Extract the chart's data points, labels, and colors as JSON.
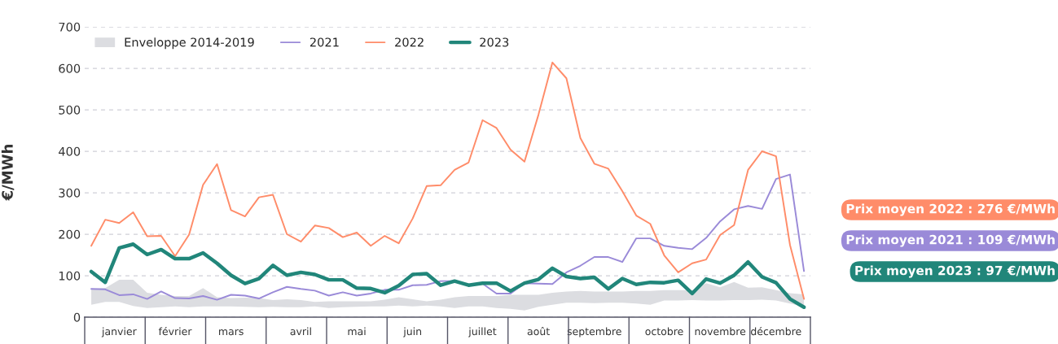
{
  "chart_data": {
    "type": "line",
    "ylabel": "€/MWh",
    "categories": [
      null,
      null,
      "janvier",
      null,
      null,
      null,
      "février",
      null,
      null,
      null,
      "mars",
      null,
      null,
      null,
      null,
      "avril",
      null,
      null,
      null,
      "mai",
      null,
      null,
      null,
      "juin",
      null,
      null,
      null,
      null,
      "juillet",
      null,
      null,
      null,
      "août",
      null,
      null,
      null,
      "septembre",
      null,
      null,
      null,
      null,
      "octobre",
      null,
      null,
      null,
      "novembre",
      null,
      null,
      null,
      "décembre",
      null,
      null
    ],
    "ylim": [
      0,
      700
    ],
    "yticks": [
      0,
      100,
      200,
      300,
      400,
      500,
      600,
      700
    ],
    "grid": "y",
    "legend": "top left",
    "series": [
      {
        "name": "Enveloppe 2014-2019",
        "color": "#dcdde1",
        "values": [
          null,
          null,
          null,
          null,
          null,
          null,
          null,
          null,
          null,
          null,
          null,
          null,
          null,
          null,
          null,
          null,
          null,
          null,
          null,
          null,
          null,
          null,
          null,
          null,
          null,
          null,
          null,
          null,
          null,
          null,
          null,
          null,
          null,
          null,
          null,
          null,
          null,
          null,
          null,
          null,
          null,
          null,
          null,
          null,
          null,
          null,
          null,
          null,
          null,
          null,
          null,
          null
        ],
        "upper": [
          68,
          70,
          90,
          90,
          59,
          54,
          51,
          51,
          70,
          48,
          46,
          47,
          46,
          41,
          43,
          41,
          37,
          38,
          38,
          38,
          38,
          42,
          48,
          43,
          38,
          42,
          48,
          51,
          51,
          51,
          54,
          54,
          54,
          59,
          62,
          63,
          62,
          62,
          62,
          63,
          63,
          65,
          65,
          65,
          82,
          72,
          85,
          71,
          72,
          65,
          58,
          55
        ],
        "lower": [
          30,
          37,
          37,
          27,
          22,
          24,
          26,
          24,
          26,
          26,
          26,
          25,
          24,
          25,
          24,
          24,
          26,
          22,
          24,
          25,
          26,
          26,
          28,
          26,
          28,
          26,
          22,
          26,
          26,
          22,
          20,
          16,
          25,
          30,
          35,
          35,
          34,
          35,
          35,
          33,
          30,
          40,
          40,
          41,
          40,
          40,
          41,
          41,
          42,
          40,
          33,
          25
        ]
      },
      {
        "name": "2021",
        "color": "#9a8ad8",
        "values": [
          68,
          67,
          53,
          55,
          44,
          62,
          46,
          45,
          51,
          42,
          54,
          52,
          45,
          60,
          73,
          68,
          64,
          52,
          60,
          52,
          57,
          66,
          66,
          77,
          78,
          87,
          87,
          78,
          81,
          57,
          57,
          82,
          81,
          80,
          108,
          124,
          145,
          145,
          133,
          190,
          190,
          172,
          167,
          164,
          191,
          231,
          260,
          268,
          261,
          333,
          344,
          111
        ]
      },
      {
        "name": "2022",
        "color": "#ff8c69",
        "values": [
          172,
          235,
          227,
          253,
          195,
          196,
          147,
          199,
          319,
          369,
          258,
          243,
          289,
          295,
          200,
          182,
          221,
          215,
          193,
          204,
          172,
          196,
          178,
          238,
          316,
          318,
          355,
          373,
          475,
          456,
          404,
          375,
          488,
          614,
          576,
          432,
          370,
          358,
          304,
          245,
          225,
          149,
          108,
          130,
          139,
          198,
          222,
          355,
          400,
          388,
          174,
          44
        ]
      },
      {
        "name": "2023",
        "color": "#21867a",
        "values": [
          110,
          84,
          167,
          176,
          151,
          163,
          141,
          141,
          155,
          130,
          101,
          81,
          93,
          125,
          101,
          108,
          103,
          90,
          90,
          70,
          69,
          59,
          76,
          103,
          105,
          77,
          87,
          77,
          82,
          82,
          63,
          82,
          91,
          118,
          98,
          93,
          96,
          68,
          93,
          79,
          84,
          83,
          89,
          57,
          92,
          82,
          101,
          133,
          97,
          83,
          44,
          24
        ]
      }
    ],
    "annotations": [
      "Prix moyen 2022 : 276 €/MWh",
      "Prix moyen 2021 : 109 €/MWh",
      "Prix moyen 2023 : 97 €/MWh"
    ]
  }
}
